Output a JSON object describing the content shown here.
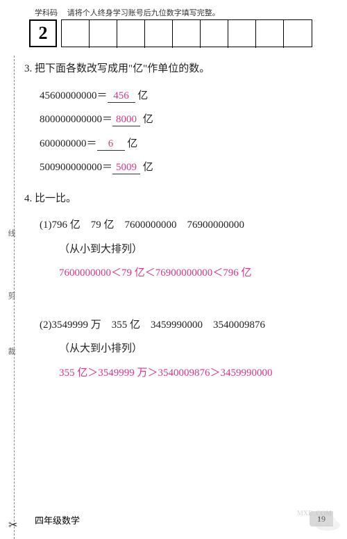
{
  "header": {
    "label_left": "学科码",
    "label_right": "请将个人终身学习账号后九位数字填写完整。",
    "big_code": "2",
    "small_count": 9
  },
  "cut": {
    "label_top": "线",
    "label_mid": "剪",
    "label_bot": "裁",
    "scissors": "✂"
  },
  "q3": {
    "title": "3. 把下面各数改写成用\"亿\"作单位的数。",
    "lines": [
      {
        "lhs": "45600000000＝",
        "ans": "456",
        "unit": "亿"
      },
      {
        "lhs": "800000000000＝",
        "ans": "8000",
        "unit": "亿"
      },
      {
        "lhs": "600000000＝",
        "ans": "6",
        "unit": "亿"
      },
      {
        "lhs": "500900000000＝",
        "ans": "5009",
        "unit": "亿"
      }
    ]
  },
  "q4": {
    "title": "4. 比一比。",
    "part1": {
      "given": "(1)796 亿　79 亿　7600000000　76900000000",
      "hint": "（从小到大排列）",
      "answer": "7600000000＜79 亿＜76900000000＜796 亿"
    },
    "part2": {
      "given": "(2)3549999 万　355 亿　3459990000　3540009876",
      "hint": "（从大到小排列）",
      "answer": "355 亿＞3549999 万＞3540009876＞3459990000"
    }
  },
  "footer": {
    "subject": "四年级数学",
    "page": "19"
  },
  "watermark": {
    "line2": "MXE .COM"
  },
  "colors": {
    "answer": "#d23a8a",
    "text": "#222222",
    "background": "#ffffff"
  }
}
